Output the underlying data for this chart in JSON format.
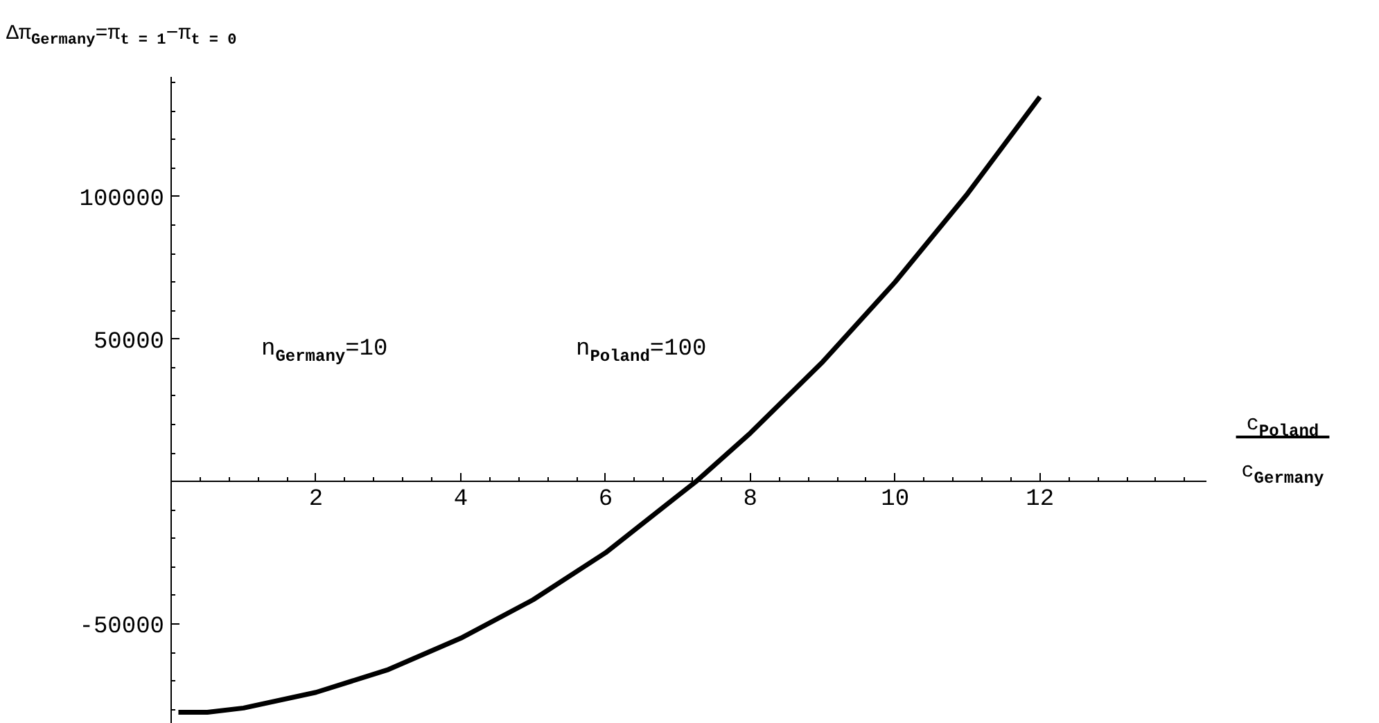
{
  "chart_data": {
    "type": "line",
    "title": "Δπ$_{Germany}$=π$_{t = 1}$−π$_{t = 0}$",
    "xlabel": "c$_{Poland}$\nc$_{Germany}$",
    "annotations": [
      "n$_{Germany}$=10",
      "n$_{Poland}$=100"
    ],
    "x": [
      0.1,
      0.5,
      1,
      2,
      3,
      4,
      5,
      6,
      7,
      7.25,
      8,
      9,
      10,
      11,
      12
    ],
    "series": [
      {
        "color": "#000000",
        "values": [
          -81000,
          -81000,
          -79500,
          -74000,
          -66000,
          -55000,
          -41500,
          -25000,
          -5000,
          0,
          17000,
          42000,
          70000,
          101000,
          135000
        ]
      }
    ],
    "xlim": [
      0,
      14.3
    ],
    "ylim": [
      -85000,
      142000
    ],
    "xticks": [
      2,
      4,
      6,
      8,
      10,
      12
    ],
    "yticks": [
      -50000,
      50000,
      100000
    ],
    "grid": false,
    "marker": "none",
    "line_style": "solid"
  }
}
